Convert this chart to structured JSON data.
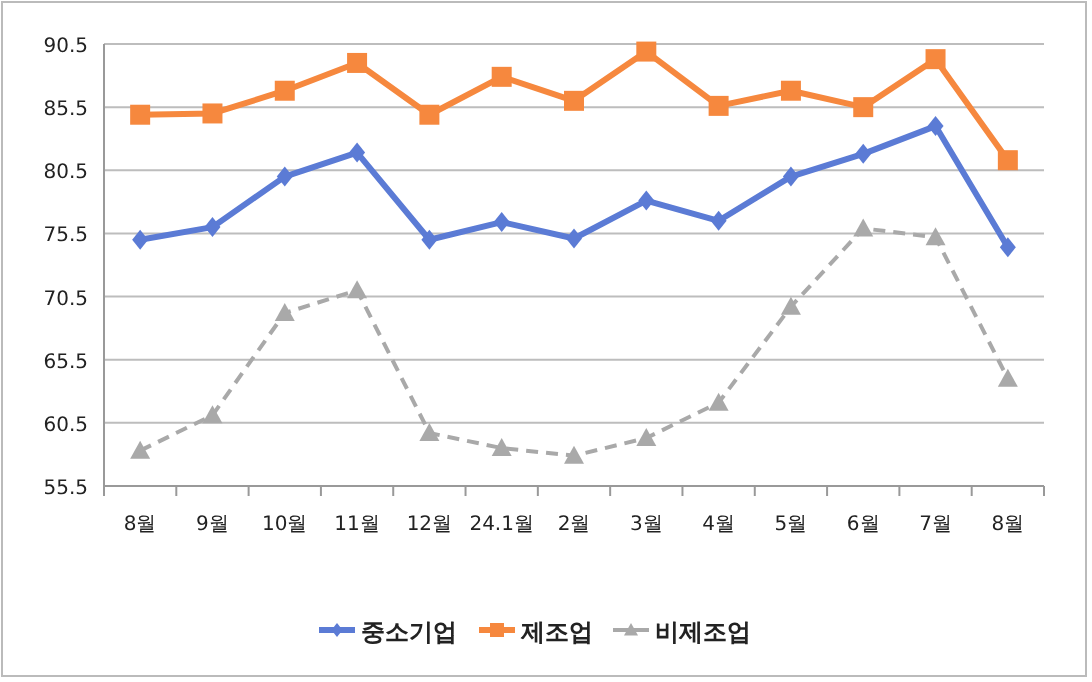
{
  "chart_data": {
    "type": "line",
    "categories": [
      "8월",
      "9월",
      "10월",
      "11월",
      "12월",
      "24.1월",
      "2월",
      "3월",
      "4월",
      "5월",
      "6월",
      "7월",
      "8월"
    ],
    "ylim": [
      55.5,
      90.5
    ],
    "yticks": [
      55.5,
      60.5,
      65.5,
      70.5,
      75.5,
      80.5,
      85.5,
      90.5
    ],
    "grid": "y",
    "legend": "bottom",
    "series": [
      {
        "name": "중소기업",
        "color": "#5b7bd5",
        "marker": "diamond",
        "line_style": "solid",
        "values": [
          75.0,
          76.0,
          80.0,
          81.9,
          75.0,
          76.4,
          75.1,
          78.1,
          76.5,
          80.0,
          81.8,
          84.0,
          74.4
        ]
      },
      {
        "name": "제조업",
        "color": "#f6883e",
        "marker": "square",
        "line_style": "solid",
        "values": [
          84.9,
          85.0,
          86.8,
          89.0,
          84.9,
          87.9,
          86.0,
          89.9,
          85.6,
          86.8,
          85.5,
          89.3,
          81.3
        ]
      },
      {
        "name": "비제조업",
        "color": "#a9a9a9",
        "marker": "triangle",
        "line_style": "dashed",
        "values": [
          58.3,
          61.1,
          69.2,
          71.0,
          59.7,
          58.5,
          57.9,
          59.3,
          62.1,
          69.7,
          75.9,
          75.2,
          64.0
        ]
      }
    ]
  }
}
